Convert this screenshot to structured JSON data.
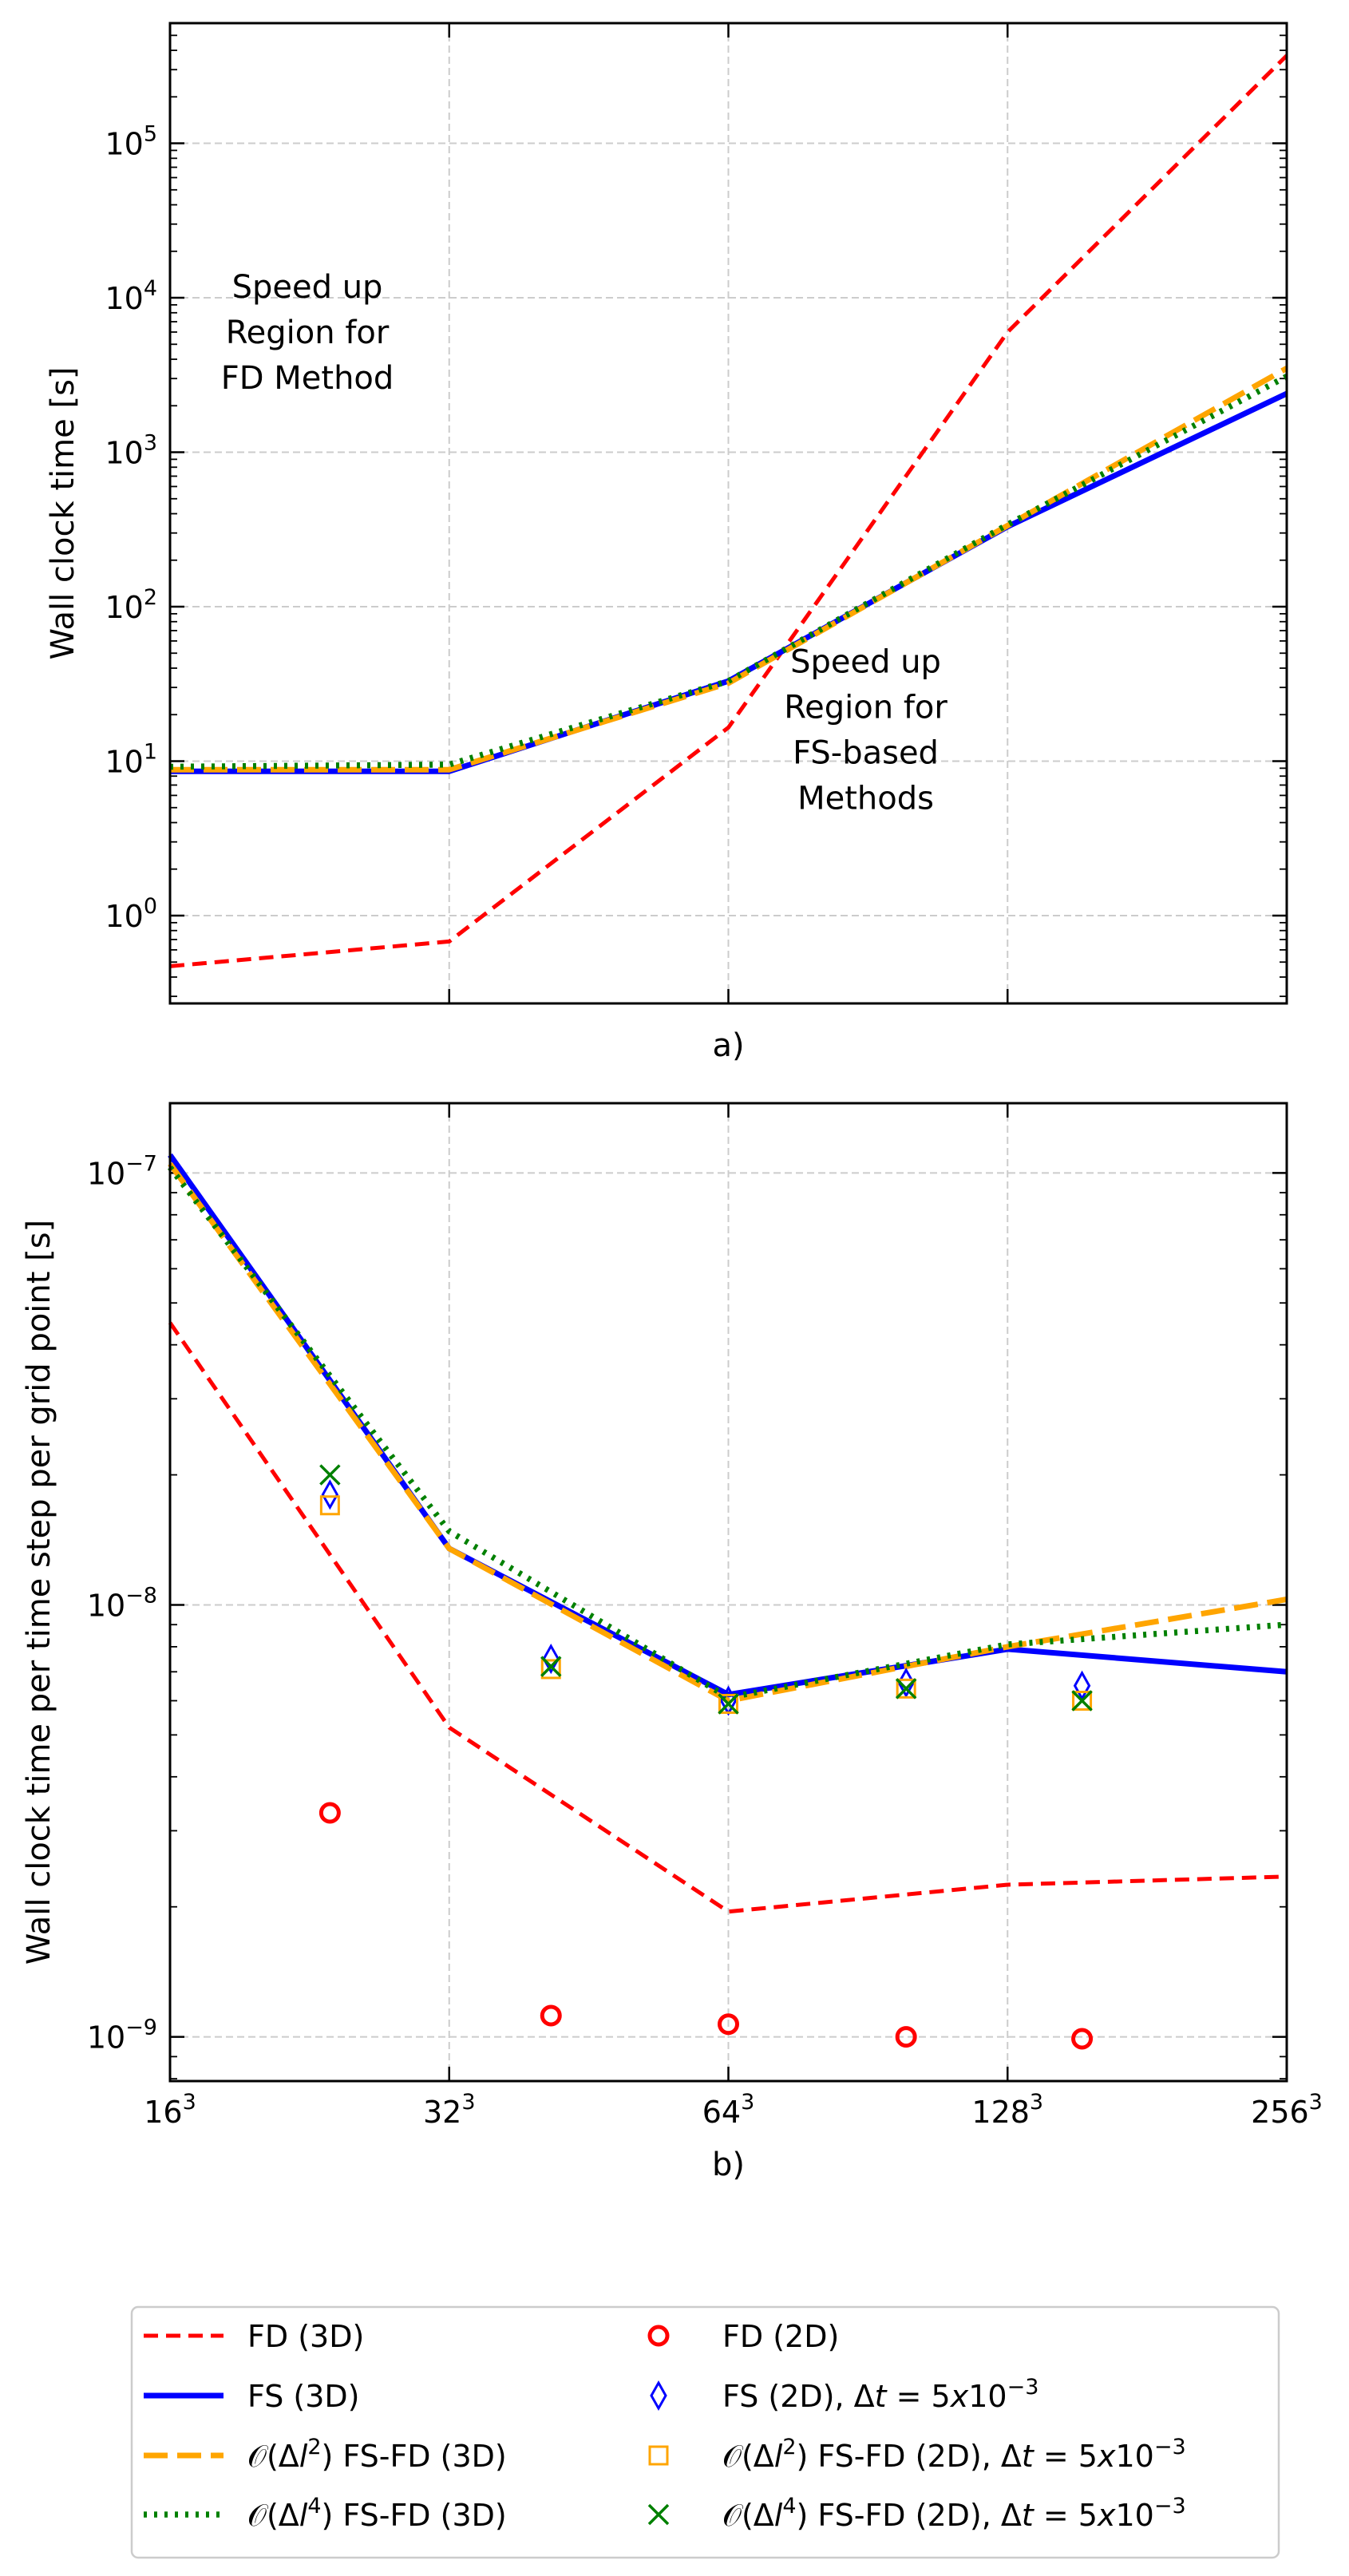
{
  "chart_data": [
    {
      "panel": "a)",
      "type": "line",
      "ylabel": "Wall clock time [s]",
      "xlabel": "a)",
      "yscale": "log",
      "xscale": "log2",
      "ylim": [
        0.27,
        600000
      ],
      "grid": true,
      "x_tick_base": [
        16,
        32,
        64,
        128,
        256
      ],
      "y_ticks": [
        {
          "base": "10",
          "exp": "0",
          "v": 1
        },
        {
          "base": "10",
          "exp": "1",
          "v": 10
        },
        {
          "base": "10",
          "exp": "2",
          "v": 100
        },
        {
          "base": "10",
          "exp": "3",
          "v": 1000
        },
        {
          "base": "10",
          "exp": "4",
          "v": 10000
        },
        {
          "base": "10",
          "exp": "5",
          "v": 100000
        }
      ],
      "annotations": [
        {
          "lines": [
            "Speed up",
            "Region for",
            "FD Method"
          ],
          "x": 22.5,
          "y": 6000
        },
        {
          "lines": [
            "Speed up",
            "Region for",
            "FS-based",
            "Methods"
          ],
          "x": 90,
          "y": 16
        }
      ],
      "series": [
        {
          "key": "fd3d",
          "x": [
            16,
            32,
            64,
            128,
            256
          ],
          "y": [
            0.47,
            0.68,
            16.5,
            6000,
            370000
          ]
        },
        {
          "key": "fs3d",
          "x": [
            16,
            32,
            64,
            128,
            256
          ],
          "y": [
            8.6,
            8.6,
            33,
            330,
            2400
          ]
        },
        {
          "key": "o2_3d",
          "x": [
            16,
            32,
            64,
            128,
            256
          ],
          "y": [
            8.8,
            8.8,
            32,
            335,
            3500
          ]
        },
        {
          "key": "o4_3d",
          "x": [
            16,
            32,
            64,
            128,
            256
          ],
          "y": [
            9.2,
            9.5,
            33,
            340,
            3100
          ]
        }
      ]
    },
    {
      "panel": "b)",
      "type": "line",
      "ylabel": "Wall clock time per time step per grid point [s]",
      "xlabel": "b)",
      "yscale": "log",
      "xscale": "log2",
      "ylim": [
        7.9e-10,
        1.45e-07
      ],
      "grid": true,
      "x_tick_base": [
        16,
        32,
        64,
        128,
        256
      ],
      "x_tick_exp": "3",
      "y_ticks": [
        {
          "base": "10",
          "exp": "−9",
          "v": 1e-09
        },
        {
          "base": "10",
          "exp": "−8",
          "v": 1e-08
        },
        {
          "base": "10",
          "exp": "−7",
          "v": 1e-07
        }
      ],
      "series": [
        {
          "key": "fd3d",
          "x": [
            16,
            32,
            64,
            128,
            256
          ],
          "y": [
            4.5e-08,
            5.2e-09,
            1.95e-09,
            2.25e-09,
            2.35e-09
          ]
        },
        {
          "key": "fs3d",
          "x": [
            16,
            32,
            64,
            128,
            256
          ],
          "y": [
            1.1e-07,
            1.35e-08,
            6.2e-09,
            7.9e-09,
            7e-09
          ]
        },
        {
          "key": "o2_3d",
          "x": [
            16,
            32,
            64,
            128,
            256
          ],
          "y": [
            1.05e-07,
            1.35e-08,
            6e-09,
            8e-09,
            1.03e-08
          ]
        },
        {
          "key": "o4_3d",
          "x": [
            16,
            32,
            64,
            128,
            256
          ],
          "y": [
            1.03e-07,
            1.48e-08,
            6.1e-09,
            8.1e-09,
            9e-09
          ]
        },
        {
          "key": "fd2d",
          "x": [
            23.8,
            41.2,
            64,
            99.5,
            154
          ],
          "y": [
            3.3e-09,
            1.12e-09,
            1.07e-09,
            1e-09,
            9.9e-10
          ]
        },
        {
          "key": "fs2d",
          "x": [
            23.8,
            41.2,
            64,
            99.5,
            154
          ],
          "y": [
            1.8e-08,
            7.5e-09,
            6e-09,
            6.6e-09,
            6.5e-09
          ]
        },
        {
          "key": "o2_2d",
          "x": [
            23.8,
            41.2,
            64,
            99.5,
            154
          ],
          "y": [
            1.7e-08,
            7.1e-09,
            5.9e-09,
            6.4e-09,
            6e-09
          ]
        },
        {
          "key": "o4_2d",
          "x": [
            23.8,
            41.2,
            64,
            99.5,
            154
          ],
          "y": [
            2e-08,
            7.2e-09,
            5.9e-09,
            6.4e-09,
            6e-09
          ]
        }
      ]
    }
  ],
  "legend": {
    "placement": "bottom",
    "entries": [
      {
        "key": "fd3d",
        "label": "FD (3D)"
      },
      {
        "key": "fs3d",
        "label": "FS (3D)"
      },
      {
        "key": "o2_3d",
        "pre": "𝒪(Δ",
        "ital": "l",
        "sup": "2",
        "post": ") FS-FD (3D)"
      },
      {
        "key": "o4_3d",
        "pre": "𝒪(Δ",
        "ital": "l",
        "sup": "4",
        "post": ") FS-FD (3D)"
      },
      {
        "key": "fd2d",
        "label": "FD (2D)"
      },
      {
        "key": "fs2d",
        "pre": "FS (2D), Δ",
        "ital": "t",
        "mid": " = 5",
        "ital2": "x",
        "base10": "10",
        "sup": "−3"
      },
      {
        "key": "o2_2d",
        "pre": "𝒪(Δ",
        "ital": "l",
        "sup": "2",
        "post": ") FS-FD (2D), Δ",
        "ital3": "t",
        "mid": " = 5",
        "ital2": "x",
        "base10": "10",
        "sup2": "−3"
      },
      {
        "key": "o4_2d",
        "pre": "𝒪(Δ",
        "ital": "l",
        "sup": "4",
        "post": ") FS-FD (2D), Δ",
        "ital3": "t",
        "mid": " = 5",
        "ital2": "x",
        "base10": "10",
        "sup2": "−3"
      }
    ]
  },
  "colors": {
    "fd": "#ff0000",
    "fs": "#0000ff",
    "o2": "#ffa500",
    "o4": "#008000",
    "grid": "#cccccc"
  }
}
